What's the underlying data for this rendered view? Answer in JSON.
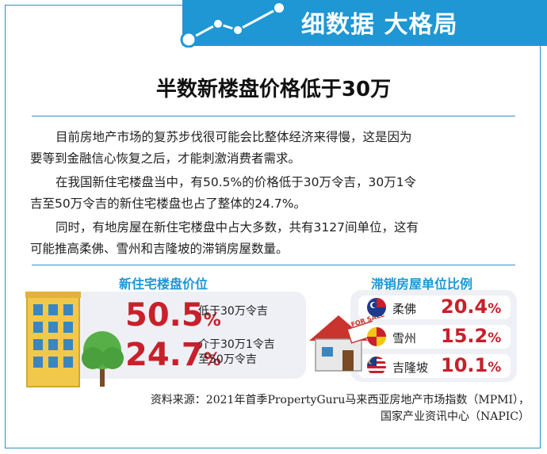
{
  "header": {
    "title": "细数据 大格局"
  },
  "article": {
    "title": "半数新楼盘价格低于30万",
    "paragraphs": [
      [
        "目前房地产市场的复苏步伐很可能会比整体经济来得慢，这是因为",
        "要等到金融信心恢复之后，才能刺激消费者需求。"
      ],
      [
        "在我国新住宅楼盘当中，有50.5%的价格低于30万令吉，30万1令",
        "吉至50万令吉的新住宅楼盘也占了整体的24.7%。"
      ],
      [
        "同时，有地房屋在新住宅楼盘中占大多数，共有3127间单位，这有",
        "可能推高柔佛、雪州和吉隆坡的滞销房屋数量。"
      ]
    ]
  },
  "new_price": {
    "title": "新住宅楼盘价位",
    "items": [
      {
        "value": "50.5",
        "unit": "%",
        "label_lines": [
          "低于30万令吉"
        ]
      },
      {
        "value": "24.7",
        "unit": "%",
        "label_lines": [
          "介于30万1令吉",
          "至50万令吉"
        ]
      }
    ]
  },
  "unsold": {
    "title": "滞销房屋单位比例",
    "sign_text": "FOR SALE",
    "items": [
      {
        "state": "柔佛",
        "value": "20.4",
        "unit": "%",
        "flag_icon": "johor-flag-icon"
      },
      {
        "state": "雪州",
        "value": "15.2",
        "unit": "%",
        "flag_icon": "selangor-flag-icon"
      },
      {
        "state": "吉隆坡",
        "value": "10.1",
        "unit": "%",
        "flag_icon": "malaysia-flag-icon"
      }
    ]
  },
  "source": {
    "lines": [
      "资料来源：2021年首季PropertyGuru马来西亚房地产市场指数（MPMI），",
      "国家产业资讯中心（NAPIC）"
    ]
  },
  "colors": {
    "accent": "#1e97d4",
    "highlight": "#c8202b",
    "panel": "#eef0f5"
  }
}
